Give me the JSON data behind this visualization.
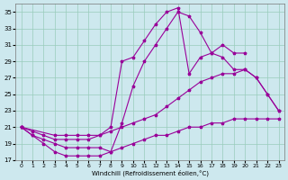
{
  "background_color": "#cde8ee",
  "grid_color": "#99ccbb",
  "line_color": "#990099",
  "xlabel": "Windchill (Refroidissement éolien,°C)",
  "x_ticks": [
    0,
    1,
    2,
    3,
    4,
    5,
    6,
    7,
    8,
    9,
    10,
    11,
    12,
    13,
    14,
    15,
    16,
    17,
    18,
    19,
    20,
    21,
    22,
    23
  ],
  "y_ticks": [
    17,
    19,
    21,
    23,
    25,
    27,
    29,
    31,
    33,
    35
  ],
  "xlim": [
    -0.5,
    23.5
  ],
  "ylim": [
    17,
    36
  ],
  "lines": [
    {
      "x": [
        0,
        1,
        2,
        3,
        4,
        5,
        6,
        7,
        8,
        9,
        10,
        11,
        12,
        13,
        14,
        15,
        16,
        17,
        18,
        19,
        20
      ],
      "y": [
        21,
        20,
        19,
        18,
        17.5,
        17.5,
        17.5,
        17.5,
        18,
        21.5,
        26,
        29,
        31,
        33,
        35,
        34.5,
        32.5,
        30,
        31,
        30,
        30
      ]
    },
    {
      "x": [
        0,
        3,
        4,
        5,
        6,
        7,
        8,
        9,
        10,
        11,
        12,
        13,
        14,
        15,
        16,
        17,
        18,
        19,
        20,
        21,
        22,
        23
      ],
      "y": [
        21,
        20,
        20,
        20,
        20,
        20,
        21,
        29,
        29.5,
        31.5,
        33.5,
        35,
        35.5,
        27.5,
        29.5,
        30,
        29.5,
        28,
        28,
        27,
        25,
        23
      ]
    },
    {
      "x": [
        0,
        1,
        2,
        3,
        4,
        5,
        6,
        7,
        8,
        9,
        10,
        11,
        12,
        13,
        14,
        15,
        16,
        17,
        18,
        19,
        20,
        21,
        22,
        23
      ],
      "y": [
        21,
        20.5,
        20,
        19.5,
        19.5,
        19.5,
        19.5,
        20,
        20.5,
        21,
        21.5,
        22,
        22.5,
        23.5,
        24.5,
        25.5,
        26.5,
        27,
        27.5,
        27.5,
        28,
        27,
        25,
        23
      ]
    },
    {
      "x": [
        0,
        1,
        2,
        3,
        4,
        5,
        6,
        7,
        8,
        9,
        10,
        11,
        12,
        13,
        14,
        15,
        16,
        17,
        18,
        19,
        20,
        21,
        22,
        23
      ],
      "y": [
        21,
        20,
        19.5,
        19,
        18.5,
        18.5,
        18.5,
        18.5,
        18,
        18.5,
        19,
        19.5,
        20,
        20,
        20.5,
        21,
        21,
        21.5,
        21.5,
        22,
        22,
        22,
        22,
        22
      ]
    }
  ]
}
